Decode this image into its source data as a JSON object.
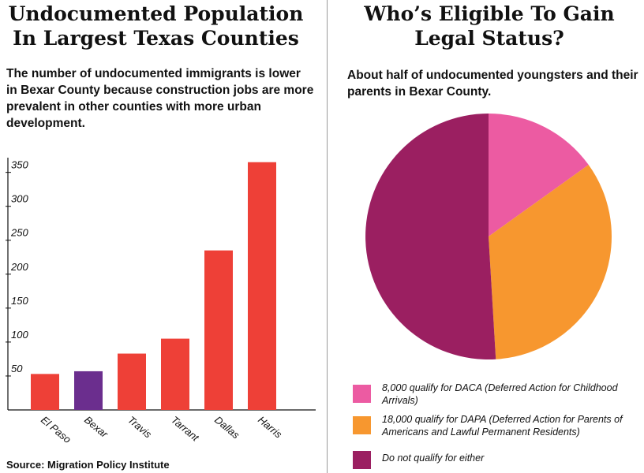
{
  "left": {
    "title": "Undocumented Population In Largest Texas Counties",
    "subtitle": "The number of undocumented immigrants is lower in Bexar County because construction jobs are more prevalent in other counties with more urban development.",
    "source": "Source: Migration Policy Institute"
  },
  "right": {
    "title": "Who’s Eligible To Gain Legal Status?",
    "subtitle": "About half of undocumented youngsters and their parents in Bexar County."
  },
  "colors": {
    "bar": "#ee4037",
    "bar_highlight": "#6b2e8e",
    "daca": "#ec5ba2",
    "dapa": "#f7972f",
    "neither": "#9b1f61",
    "axis": "#111111"
  },
  "chart_data": [
    {
      "type": "bar",
      "title": "Undocumented Population In Largest Texas Counties",
      "categories": [
        "El Paso",
        "Bexar",
        "Travis",
        "Tarrant",
        "Dallas",
        "Harris"
      ],
      "values": [
        53,
        57,
        83,
        105,
        235,
        365
      ],
      "highlight": "Bexar",
      "yticks": [
        50,
        100,
        150,
        200,
        250,
        300,
        350
      ],
      "ytick_labels": [
        "50",
        "100",
        "150",
        "200",
        "250",
        "300",
        "350"
      ],
      "ylim": [
        0,
        367
      ],
      "xlabel": "",
      "ylabel": ""
    },
    {
      "type": "pie",
      "title": "Who’s Eligible To Gain Legal Status?",
      "slices": [
        {
          "label": "8,000 qualify for DACA (Deferred Action for Childhood Arrivals)",
          "value": 8000,
          "color": "#ec5ba2"
        },
        {
          "label": "18,000 qualify for DAPA (Deferred Action for Parents of Americans and Lawful Permanent Residents)",
          "value": 18000,
          "color": "#f7972f"
        },
        {
          "label": "Do not qualify for either",
          "value": 27000,
          "color": "#9b1f61"
        }
      ],
      "legend_position": "bottom"
    }
  ]
}
